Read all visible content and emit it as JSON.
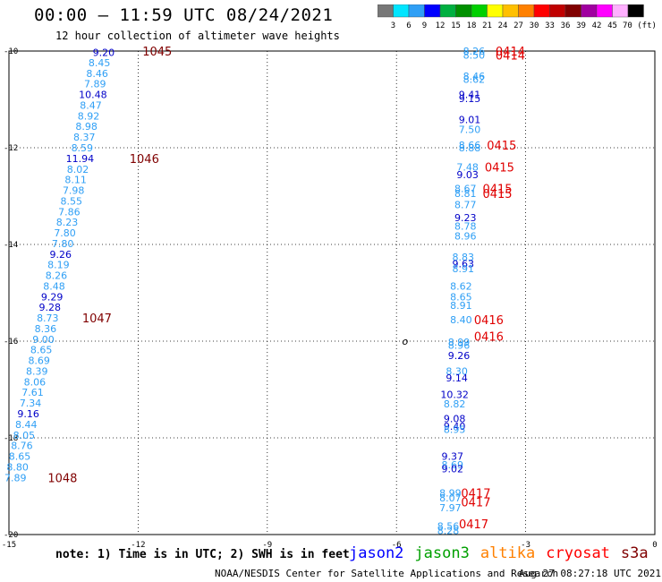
{
  "title": "00:00 – 11:59 UTC 08/24/2021",
  "subtitle": "12 hour collection of altimeter wave heights",
  "colorbar": {
    "labels": [
      "3",
      "6",
      "9",
      "12",
      "15",
      "18",
      "21",
      "24",
      "27",
      "30",
      "33",
      "36",
      "39",
      "42",
      "45",
      "70 (ft)"
    ],
    "colors": [
      "#777777",
      "#00e5ff",
      "#2f9ff5",
      "#0000ff",
      "#00b040",
      "#009000",
      "#00d000",
      "#ffff00",
      "#ffc000",
      "#ff8000",
      "#ff0000",
      "#c00000",
      "#800000",
      "#a000a0",
      "#ff00ff",
      "#ffb0ff",
      "#000000"
    ]
  },
  "note": "note: 1) Time is in UTC; 2) SWH is in feet",
  "missions": [
    {
      "name": "jason2",
      "color": "#0000ff"
    },
    {
      "name": "jason3",
      "color": "#00a000"
    },
    {
      "name": "altika",
      "color": "#ff8000"
    },
    {
      "name": "cryosat",
      "color": "#ff0000"
    },
    {
      "name": "s3a",
      "color": "#800000"
    }
  ],
  "footer_left": "NOAA/NESDIS Center for Satellite Applications and Research",
  "footer_right": "Aug 27 08:27:18 UTC 2021",
  "chart_data": {
    "type": "scatter",
    "xlim": [
      -15,
      0
    ],
    "ylim": [
      -20,
      -10
    ],
    "xticks": [
      "-15",
      "-12",
      "-9",
      "-6",
      "-3",
      "0"
    ],
    "yticks": [
      "-10",
      "-12",
      "-14",
      "-16",
      "-18",
      "-20"
    ],
    "grid": true,
    "tracks": [
      {
        "points": [
          {
            "x": -12.8,
            "y": -10.03,
            "v": "9.20",
            "c": "#0000c8"
          },
          {
            "x": -12.9,
            "y": -10.24,
            "v": "8.45",
            "c": "#2f9ff5"
          },
          {
            "x": -12.95,
            "y": -10.46,
            "v": "8.46",
            "c": "#2f9ff5"
          },
          {
            "x": -13.0,
            "y": -10.68,
            "v": "7.89",
            "c": "#2f9ff5"
          },
          {
            "x": -13.05,
            "y": -10.9,
            "v": "10.48",
            "c": "#0000c8"
          },
          {
            "x": -13.1,
            "y": -11.12,
            "v": "8.47",
            "c": "#2f9ff5"
          },
          {
            "x": -13.15,
            "y": -11.34,
            "v": "8.92",
            "c": "#2f9ff5"
          },
          {
            "x": -13.2,
            "y": -11.56,
            "v": "8.98",
            "c": "#2f9ff5"
          },
          {
            "x": -13.25,
            "y": -11.78,
            "v": "8.37",
            "c": "#2f9ff5"
          },
          {
            "x": -13.3,
            "y": -12.0,
            "v": "8.59",
            "c": "#2f9ff5"
          },
          {
            "x": -13.35,
            "y": -12.22,
            "v": "11.94",
            "c": "#0000c8"
          },
          {
            "x": -13.4,
            "y": -12.44,
            "v": "8.02",
            "c": "#2f9ff5"
          },
          {
            "x": -13.45,
            "y": -12.66,
            "v": "8.11",
            "c": "#2f9ff5"
          },
          {
            "x": -13.5,
            "y": -12.88,
            "v": "7.98",
            "c": "#2f9ff5"
          },
          {
            "x": -13.55,
            "y": -13.1,
            "v": "8.55",
            "c": "#2f9ff5"
          },
          {
            "x": -13.6,
            "y": -13.32,
            "v": "7.86",
            "c": "#2f9ff5"
          },
          {
            "x": -13.65,
            "y": -13.54,
            "v": "8.23",
            "c": "#2f9ff5"
          },
          {
            "x": -13.7,
            "y": -13.76,
            "v": "7.80",
            "c": "#2f9ff5"
          },
          {
            "x": -13.75,
            "y": -13.98,
            "v": "7.80",
            "c": "#2f9ff5"
          },
          {
            "x": -13.8,
            "y": -14.2,
            "v": "9.26",
            "c": "#0000c8"
          },
          {
            "x": -13.85,
            "y": -14.42,
            "v": "8.19",
            "c": "#2f9ff5"
          },
          {
            "x": -13.9,
            "y": -14.64,
            "v": "8.26",
            "c": "#2f9ff5"
          },
          {
            "x": -13.95,
            "y": -14.86,
            "v": "8.48",
            "c": "#2f9ff5"
          },
          {
            "x": -14.0,
            "y": -15.08,
            "v": "9.29",
            "c": "#0000c8"
          },
          {
            "x": -14.05,
            "y": -15.3,
            "v": "9.28",
            "c": "#0000c8"
          },
          {
            "x": -14.1,
            "y": -15.52,
            "v": "8.73",
            "c": "#2f9ff5"
          },
          {
            "x": -14.15,
            "y": -15.74,
            "v": "8.36",
            "c": "#2f9ff5"
          },
          {
            "x": -14.2,
            "y": -15.96,
            "v": "9.00",
            "c": "#2f9ff5"
          },
          {
            "x": -14.25,
            "y": -16.18,
            "v": "8.65",
            "c": "#2f9ff5"
          },
          {
            "x": -14.3,
            "y": -16.4,
            "v": "8.69",
            "c": "#2f9ff5"
          },
          {
            "x": -14.35,
            "y": -16.62,
            "v": "8.39",
            "c": "#2f9ff5"
          },
          {
            "x": -14.4,
            "y": -16.84,
            "v": "8.06",
            "c": "#2f9ff5"
          },
          {
            "x": -14.45,
            "y": -17.06,
            "v": "7.61",
            "c": "#2f9ff5"
          },
          {
            "x": -14.5,
            "y": -17.28,
            "v": "7.34",
            "c": "#2f9ff5"
          },
          {
            "x": -14.55,
            "y": -17.5,
            "v": "9.16",
            "c": "#0000c8"
          },
          {
            "x": -14.6,
            "y": -17.72,
            "v": "8.44",
            "c": "#2f9ff5"
          },
          {
            "x": -14.65,
            "y": -17.94,
            "v": "8.05",
            "c": "#2f9ff5"
          },
          {
            "x": -14.7,
            "y": -18.16,
            "v": "8.76",
            "c": "#2f9ff5"
          },
          {
            "x": -14.75,
            "y": -18.38,
            "v": "8.65",
            "c": "#2f9ff5"
          },
          {
            "x": -14.8,
            "y": -18.6,
            "v": "8.80",
            "c": "#2f9ff5"
          },
          {
            "x": -14.85,
            "y": -18.82,
            "v": "7.89",
            "c": "#2f9ff5"
          }
        ],
        "times": [
          {
            "x": -11.9,
            "y": -10.0,
            "t": "1045",
            "c": "#800000"
          },
          {
            "x": -12.2,
            "y": -12.22,
            "t": "1046",
            "c": "#800000"
          },
          {
            "x": -13.3,
            "y": -15.52,
            "t": "1047",
            "c": "#800000"
          },
          {
            "x": -14.1,
            "y": -18.82,
            "t": "1048",
            "c": "#800000"
          }
        ]
      },
      {
        "points": [
          {
            "x": -4.2,
            "y": -10.0,
            "v": "8.26",
            "c": "#2f9ff5"
          },
          {
            "x": -4.2,
            "y": -10.08,
            "v": "8.50",
            "c": "#2f9ff5"
          },
          {
            "x": -4.2,
            "y": -10.52,
            "v": "8.46",
            "c": "#2f9ff5"
          },
          {
            "x": -4.2,
            "y": -10.58,
            "v": "8.62",
            "c": "#2f9ff5"
          },
          {
            "x": -4.3,
            "y": -10.9,
            "v": "9.41",
            "c": "#0000c8"
          },
          {
            "x": -4.3,
            "y": -10.98,
            "v": "9.15",
            "c": "#0000c8"
          },
          {
            "x": -4.3,
            "y": -11.42,
            "v": "9.01",
            "c": "#0000c8"
          },
          {
            "x": -4.3,
            "y": -11.62,
            "v": "7.50",
            "c": "#2f9ff5"
          },
          {
            "x": -4.3,
            "y": -11.94,
            "v": "8.66",
            "c": "#2f9ff5"
          },
          {
            "x": -4.3,
            "y": -12.0,
            "v": "8.88",
            "c": "#2f9ff5"
          },
          {
            "x": -4.35,
            "y": -12.4,
            "v": "7.48",
            "c": "#2f9ff5"
          },
          {
            "x": -4.35,
            "y": -12.56,
            "v": "9.03",
            "c": "#0000c8"
          },
          {
            "x": -4.4,
            "y": -12.84,
            "v": "8.67",
            "c": "#2f9ff5"
          },
          {
            "x": -4.4,
            "y": -12.94,
            "v": "8.81",
            "c": "#2f9ff5"
          },
          {
            "x": -4.4,
            "y": -13.18,
            "v": "8.77",
            "c": "#2f9ff5"
          },
          {
            "x": -4.4,
            "y": -13.44,
            "v": "9.23",
            "c": "#0000c8"
          },
          {
            "x": -4.4,
            "y": -13.62,
            "v": "8.78",
            "c": "#2f9ff5"
          },
          {
            "x": -4.4,
            "y": -13.82,
            "v": "8.96",
            "c": "#2f9ff5"
          },
          {
            "x": -4.45,
            "y": -14.26,
            "v": "8.83",
            "c": "#2f9ff5"
          },
          {
            "x": -4.45,
            "y": -14.4,
            "v": "9.63",
            "c": "#0000c8"
          },
          {
            "x": -4.45,
            "y": -14.5,
            "v": "8.91",
            "c": "#2f9ff5"
          },
          {
            "x": -4.5,
            "y": -14.86,
            "v": "8.62",
            "c": "#2f9ff5"
          },
          {
            "x": -4.5,
            "y": -15.08,
            "v": "8.65",
            "c": "#2f9ff5"
          },
          {
            "x": -4.5,
            "y": -15.26,
            "v": "8.91",
            "c": "#2f9ff5"
          },
          {
            "x": -4.5,
            "y": -15.56,
            "v": "8.40",
            "c": "#2f9ff5"
          },
          {
            "x": -4.55,
            "y": -16.02,
            "v": "8.99",
            "c": "#2f9ff5"
          },
          {
            "x": -4.55,
            "y": -16.08,
            "v": "8.96",
            "c": "#2f9ff5"
          },
          {
            "x": -4.55,
            "y": -16.3,
            "v": "9.26",
            "c": "#0000c8"
          },
          {
            "x": -4.6,
            "y": -16.62,
            "v": "8.30",
            "c": "#2f9ff5"
          },
          {
            "x": -4.6,
            "y": -16.76,
            "v": "9.14",
            "c": "#0000c8"
          },
          {
            "x": -4.65,
            "y": -17.1,
            "v": "10.32",
            "c": "#0000c8"
          },
          {
            "x": -4.65,
            "y": -17.3,
            "v": "8.82",
            "c": "#2f9ff5"
          },
          {
            "x": -4.65,
            "y": -17.6,
            "v": "9.08",
            "c": "#0000c8"
          },
          {
            "x": -4.65,
            "y": -17.76,
            "v": "9.40",
            "c": "#0000c8"
          },
          {
            "x": -4.65,
            "y": -17.82,
            "v": "8.95",
            "c": "#2f9ff5"
          },
          {
            "x": -4.7,
            "y": -18.38,
            "v": "9.37",
            "c": "#0000c8"
          },
          {
            "x": -4.7,
            "y": -18.56,
            "v": "8.69",
            "c": "#2f9ff5"
          },
          {
            "x": -4.7,
            "y": -18.64,
            "v": "9.02",
            "c": "#0000c8"
          },
          {
            "x": -4.75,
            "y": -19.14,
            "v": "8.99",
            "c": "#2f9ff5"
          },
          {
            "x": -4.75,
            "y": -19.24,
            "v": "8.07",
            "c": "#2f9ff5"
          },
          {
            "x": -4.75,
            "y": -19.44,
            "v": "7.97",
            "c": "#2f9ff5"
          },
          {
            "x": -4.8,
            "y": -19.82,
            "v": "8.56",
            "c": "#2f9ff5"
          },
          {
            "x": -4.8,
            "y": -19.92,
            "v": "8.28",
            "c": "#2f9ff5"
          }
        ],
        "times": [
          {
            "x": -3.7,
            "y": -10.0,
            "t": "0414",
            "c": "#e00000"
          },
          {
            "x": -3.7,
            "y": -10.08,
            "t": "0414",
            "c": "#e00000"
          },
          {
            "x": -3.9,
            "y": -11.94,
            "t": "0415",
            "c": "#e00000"
          },
          {
            "x": -3.95,
            "y": -12.4,
            "t": "0415",
            "c": "#e00000"
          },
          {
            "x": -4.0,
            "y": -12.84,
            "t": "0415",
            "c": "#e00000"
          },
          {
            "x": -4.0,
            "y": -12.94,
            "t": "0415",
            "c": "#e00000"
          },
          {
            "x": -4.2,
            "y": -15.56,
            "t": "0416",
            "c": "#e00000"
          },
          {
            "x": -4.2,
            "y": -15.9,
            "t": "0416",
            "c": "#e00000"
          },
          {
            "x": -4.5,
            "y": -19.14,
            "t": "0417",
            "c": "#e00000"
          },
          {
            "x": -4.5,
            "y": -19.32,
            "t": "0417",
            "c": "#e00000"
          },
          {
            "x": -4.55,
            "y": -19.78,
            "t": "0417",
            "c": "#e00000"
          }
        ]
      }
    ],
    "markers": [
      {
        "x": -5.8,
        "y": -16.0,
        "t": "o"
      }
    ]
  }
}
